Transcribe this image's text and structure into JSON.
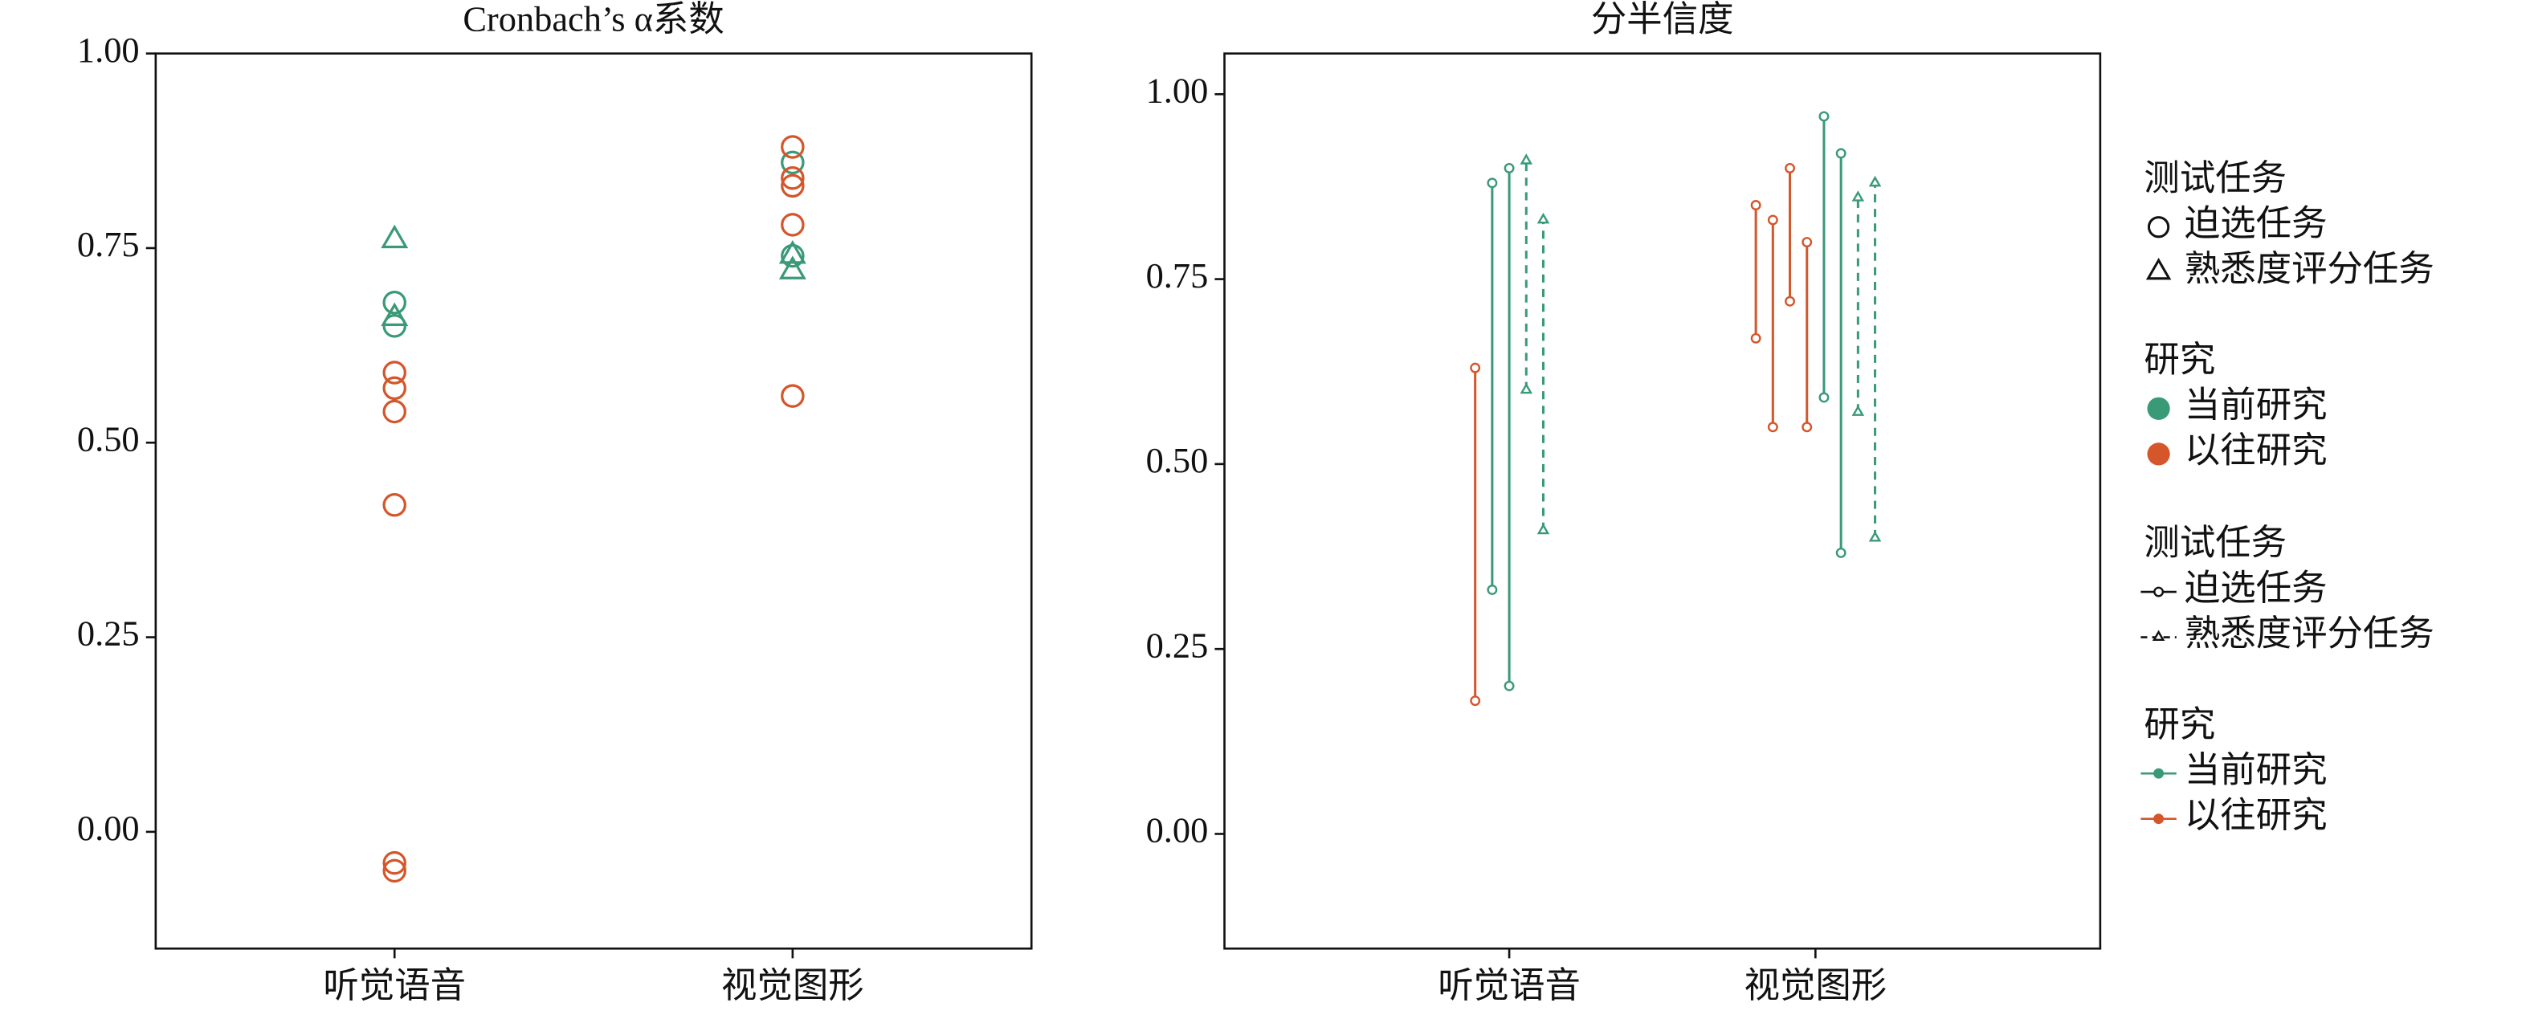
{
  "chart_data": [
    {
      "type": "strip",
      "title": "Cronbach’s α系数",
      "categories": [
        "听觉语音",
        "视觉图形"
      ],
      "xlim": [
        -0.6,
        1.6
      ],
      "ylim": [
        -0.15,
        1.0
      ],
      "yticks": [
        {
          "value": 0,
          "label": "0.00"
        },
        {
          "value": 0.25,
          "label": "0.25"
        },
        {
          "value": 0.5,
          "label": "0.50"
        },
        {
          "value": 0.75,
          "label": "0.75"
        },
        {
          "value": 1,
          "label": "1.00"
        }
      ],
      "series": [
        {
          "color": "#3a9a78",
          "marker": "triangle",
          "values": [
            [
              0.76,
              0.66
            ],
            [
              0.74,
              0.72
            ]
          ]
        },
        {
          "color": "#3a9a78",
          "marker": "circle",
          "values": [
            [
              0.68,
              0.65
            ],
            [
              0.86,
              0.74
            ]
          ]
        },
        {
          "color": "#d4562a",
          "marker": "circle",
          "values": [
            [
              0.59,
              0.57,
              0.54,
              0.42,
              -0.04,
              -0.05
            ],
            [
              0.88,
              0.84,
              0.83,
              0.78,
              0.56
            ]
          ]
        }
      ],
      "legend": [
        {
          "title": "测试任务",
          "entries": [
            {
              "label": "迫选任务",
              "marker": "circle"
            },
            {
              "label": "熟悉度评分任务",
              "marker": "triangle"
            }
          ]
        },
        {
          "title": "研究",
          "entries": [
            {
              "label": "当前研究",
              "color": "#3a9a78"
            },
            {
              "label": "以往研究",
              "color": "#d4562a"
            }
          ]
        }
      ]
    },
    {
      "type": "range",
      "title": "分半信度",
      "categories": [
        "听觉语音",
        "视觉图形"
      ],
      "xlim": [
        -0.93,
        1.93
      ],
      "ylim": [
        -0.155,
        1.055
      ],
      "yticks": [
        {
          "value": 0,
          "label": "0.00"
        },
        {
          "value": 0.25,
          "label": "0.25"
        },
        {
          "value": 0.5,
          "label": "0.50"
        },
        {
          "value": 0.75,
          "label": "0.75"
        },
        {
          "value": 1,
          "label": "1.00"
        }
      ],
      "series": [
        {
          "color": "#d4562a",
          "marker": "circle",
          "dash": false,
          "values": [
            [
              [
                0.18,
                0.63
              ]
            ],
            [
              [
                0.67,
                0.85
              ],
              [
                0.55,
                0.83
              ],
              [
                0.72,
                0.9
              ],
              [
                0.55,
                0.8
              ]
            ]
          ]
        },
        {
          "color": "#3a9a78",
          "marker": "circle",
          "dash": false,
          "values": [
            [
              [
                0.33,
                0.88
              ],
              [
                0.2,
                0.9
              ]
            ],
            [
              [
                0.59,
                0.97
              ],
              [
                0.38,
                0.92
              ]
            ]
          ]
        },
        {
          "color": "#3a9a78",
          "marker": "triangle",
          "dash": true,
          "values": [
            [
              [
                0.6,
                0.91
              ],
              [
                0.41,
                0.83
              ]
            ],
            [
              [
                0.57,
                0.86
              ],
              [
                0.4,
                0.88
              ]
            ]
          ]
        }
      ],
      "legend": [
        {
          "title": "测试任务",
          "entries": [
            {
              "label": "迫选任务",
              "marker": "circle",
              "dash": false
            },
            {
              "label": "熟悉度评分任务",
              "marker": "triangle",
              "dash": true
            }
          ]
        },
        {
          "title": "研究",
          "entries": [
            {
              "label": "当前研究",
              "color": "#3a9a78"
            },
            {
              "label": "以往研究",
              "color": "#d4562a"
            }
          ]
        }
      ]
    }
  ]
}
